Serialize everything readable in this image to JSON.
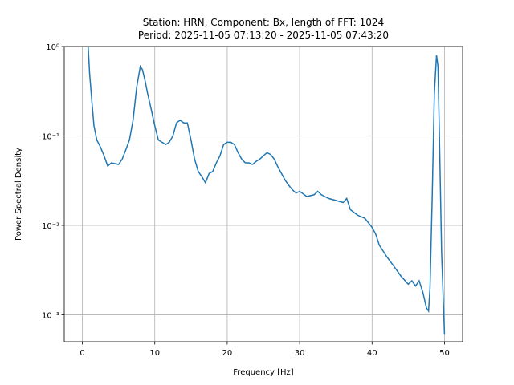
{
  "chart_data": {
    "type": "line",
    "title": "Station: HRN, Component: Bx, length of FFT: 1024",
    "subtitle": "Period: 2025-11-05 07:13:20 - 2025-11-05 07:43:20",
    "xlabel": "Frequency [Hz]",
    "ylabel": "Power Spectral Density",
    "log_y": true,
    "grid": true,
    "xlim": [
      -2.5,
      52.5
    ],
    "xticks": [
      0,
      10,
      20,
      30,
      40,
      50
    ],
    "ylim": [
      0.0005,
      1
    ],
    "yticks": [
      {
        "value": 0.001,
        "label": "10⁻³"
      },
      {
        "value": 0.01,
        "label": "10⁻²"
      },
      {
        "value": 0.1,
        "label": "10⁻¹"
      },
      {
        "value": 1,
        "label": "10⁰"
      }
    ],
    "x": [
      0.8,
      1.0,
      1.3,
      1.6,
      2.0,
      2.5,
      3.0,
      3.5,
      4.0,
      5.0,
      5.5,
      6.0,
      6.5,
      7.0,
      7.5,
      8.0,
      8.3,
      8.7,
      9.0,
      9.5,
      10.0,
      10.5,
      11.0,
      11.5,
      12.0,
      12.5,
      13.0,
      13.5,
      14.0,
      14.5,
      15.0,
      15.5,
      16.0,
      16.5,
      17.0,
      17.5,
      18.0,
      18.5,
      19.0,
      19.5,
      20.0,
      20.5,
      21.0,
      21.5,
      22.0,
      22.5,
      23.0,
      23.5,
      24.0,
      24.5,
      25.0,
      25.5,
      26.0,
      26.5,
      27.0,
      27.5,
      28.0,
      28.5,
      29.0,
      29.5,
      30.0,
      31.0,
      32.0,
      32.5,
      33.0,
      34.0,
      35.0,
      36.0,
      36.5,
      37.0,
      38.0,
      39.0,
      40.0,
      40.5,
      41.0,
      42.0,
      43.0,
      44.0,
      45.0,
      45.5,
      46.0,
      46.5,
      47.0,
      47.5,
      47.8,
      48.0,
      48.3,
      48.6,
      48.9,
      49.1,
      49.3,
      49.6,
      50.0
    ],
    "series": [
      {
        "color": "#1f77b4",
        "values": [
          1.0,
          0.5,
          0.25,
          0.13,
          0.09,
          0.075,
          0.06,
          0.046,
          0.05,
          0.048,
          0.055,
          0.07,
          0.09,
          0.15,
          0.35,
          0.6,
          0.55,
          0.4,
          0.3,
          0.2,
          0.13,
          0.09,
          0.085,
          0.08,
          0.085,
          0.1,
          0.14,
          0.15,
          0.14,
          0.14,
          0.09,
          0.055,
          0.04,
          0.035,
          0.03,
          0.038,
          0.04,
          0.05,
          0.06,
          0.08,
          0.085,
          0.085,
          0.08,
          0.065,
          0.055,
          0.05,
          0.05,
          0.048,
          0.052,
          0.055,
          0.06,
          0.065,
          0.062,
          0.055,
          0.045,
          0.038,
          0.032,
          0.028,
          0.025,
          0.023,
          0.024,
          0.021,
          0.022,
          0.024,
          0.022,
          0.02,
          0.019,
          0.018,
          0.02,
          0.015,
          0.013,
          0.012,
          0.0095,
          0.008,
          0.006,
          0.0045,
          0.0035,
          0.0027,
          0.0022,
          0.0024,
          0.0021,
          0.0024,
          0.0018,
          0.0012,
          0.0011,
          0.002,
          0.02,
          0.3,
          0.8,
          0.6,
          0.1,
          0.005,
          0.0006
        ]
      }
    ]
  }
}
